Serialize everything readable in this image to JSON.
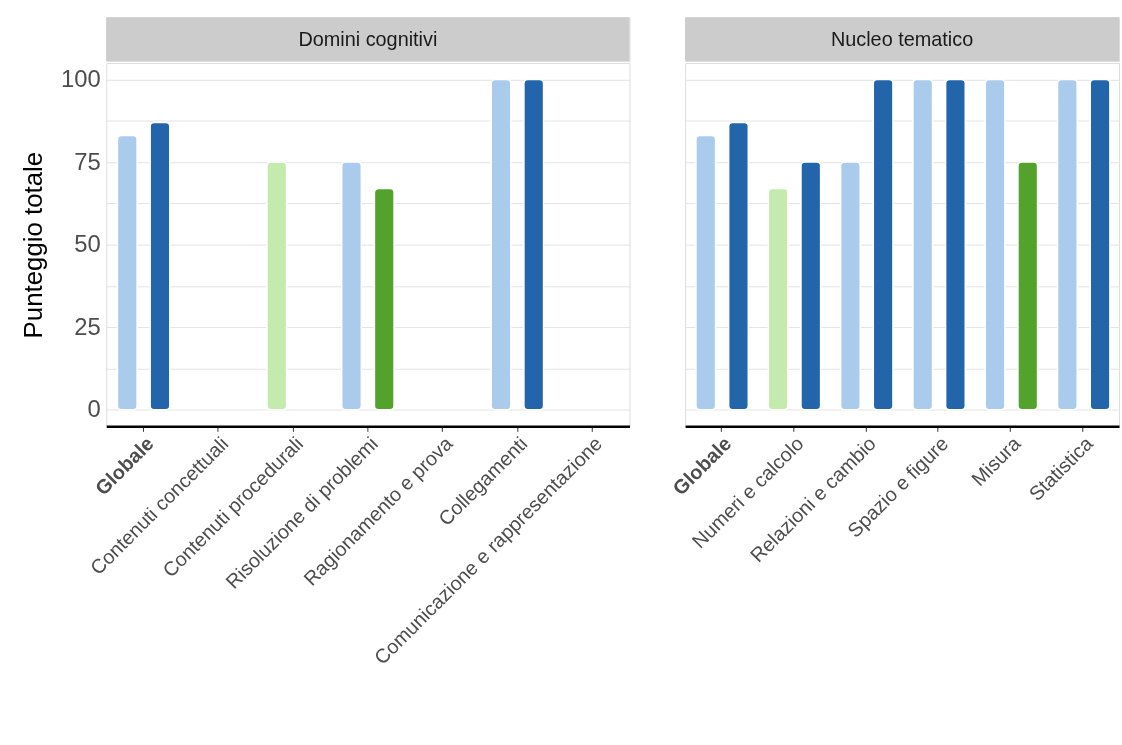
{
  "chart_data": [
    {
      "type": "bar",
      "title": "Domini cognitivi",
      "ylabel": "Punteggio totale",
      "categories": [
        "Globale",
        "Contenuti concettuali",
        "Contenuti procedurali",
        "Risoluzione di problemi",
        "Ragionamento e prova",
        "Collegamenti",
        "Comunicazione e rappresentazione"
      ],
      "series": [
        {
          "values": [
            83,
            null,
            75,
            75,
            null,
            100,
            null
          ],
          "colors": [
            "#abcbec",
            "#abcbec",
            "#c4ebae",
            "#abcbec",
            "#abcbec",
            "#abcbec",
            "#abcbec"
          ]
        },
        {
          "values": [
            87,
            null,
            null,
            67,
            null,
            100,
            null
          ],
          "colors": [
            "#2265aa",
            "#2265aa",
            "#2265aa",
            "#53a22b",
            "#2265aa",
            "#2265aa",
            "#2265aa"
          ]
        }
      ],
      "ylim": [
        -5,
        105
      ],
      "yticks": [
        0,
        {
          "value": 12.5,
          "label": null
        },
        25,
        {
          "value": 37.5,
          "label": null
        },
        50,
        {
          "value": 62.5,
          "label": null
        },
        75,
        {
          "value": 87.5,
          "label": null
        },
        100
      ],
      "grid": "y"
    },
    {
      "type": "bar",
      "title": "Nucleo tematico",
      "categories": [
        "Globale",
        "Numeri e calcolo",
        "Relazioni e cambio",
        "Spazio e figure",
        "Misura",
        "Statistica"
      ],
      "series": [
        {
          "values": [
            83,
            67,
            75,
            100,
            100,
            100
          ],
          "colors": [
            "#abcbec",
            "#c4ebae",
            "#abcbec",
            "#abcbec",
            "#abcbec",
            "#abcbec"
          ]
        },
        {
          "values": [
            87,
            75,
            100,
            100,
            75,
            100
          ],
          "colors": [
            "#2265aa",
            "#2265aa",
            "#2265aa",
            "#2265aa",
            "#53a22b",
            "#2265aa"
          ]
        }
      ],
      "ylim": [
        -5,
        105
      ],
      "yticks": [
        0,
        {
          "value": 12.5,
          "label": null
        },
        25,
        {
          "value": 37.5,
          "label": null
        },
        50,
        {
          "value": 62.5,
          "label": null
        },
        75,
        {
          "value": 87.5,
          "label": null
        },
        100
      ],
      "grid": "y",
      "tick_labels": "x"
    }
  ]
}
